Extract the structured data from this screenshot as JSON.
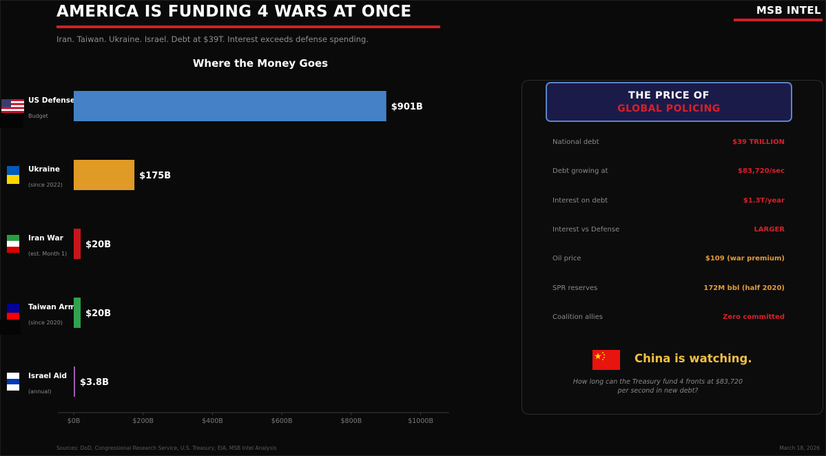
{
  "header": {
    "title": "AMERICA IS FUNDING 4 WARS AT ONCE",
    "subtitle": "Iran. Taiwan. Ukraine. Israel. Debt at $39T. Interest exceeds defense spending.",
    "brand": "MSB INTEL"
  },
  "chart_data": {
    "type": "bar",
    "orientation": "horizontal",
    "title": "Where the Money Goes",
    "xlabel": "",
    "ylabel": "",
    "xlim": [
      0,
      1080
    ],
    "grid": false,
    "unit": "billion USD",
    "categories": [
      {
        "name": "US Defense",
        "sub": "Budget",
        "value": 901,
        "label": "$901B",
        "color": "#4481c7",
        "flag": "us-flag-icon"
      },
      {
        "name": "Ukraine",
        "sub": "(since 2022)",
        "value": 175,
        "label": "$175B",
        "color": "#e09a26",
        "flag": "ukraine-flag-icon"
      },
      {
        "name": "Iran War",
        "sub": "(est. Month 1)",
        "value": 20,
        "label": "$20B",
        "color": "#c8151b",
        "flag": "iran-flag-icon"
      },
      {
        "name": "Taiwan Arm",
        "sub": "(since 2020)",
        "value": 20,
        "label": "$20B",
        "color": "#2fa34f",
        "flag": "taiwan-flag-icon"
      },
      {
        "name": "Israel Aid",
        "sub": "(annual)",
        "value": 3.8,
        "label": "$3.8B",
        "color": "#a05bb5",
        "flag": "israel-flag-icon"
      }
    ],
    "ticks": [
      {
        "value": 0,
        "label": "$0B"
      },
      {
        "value": 200,
        "label": "$200B"
      },
      {
        "value": 400,
        "label": "$400B"
      },
      {
        "value": 600,
        "label": "$600B"
      },
      {
        "value": 800,
        "label": "$800B"
      },
      {
        "value": 1000,
        "label": "$1000B"
      }
    ]
  },
  "panel": {
    "title_line1": "THE PRICE OF",
    "title_line2": "GLOBAL POLICING",
    "stats": [
      {
        "label": "National debt",
        "value": "$39 TRILLION",
        "color": "#d8202a"
      },
      {
        "label": "Debt growing at",
        "value": "$83,720/sec",
        "color": "#d8202a"
      },
      {
        "label": "Interest on debt",
        "value": "$1.3T/year",
        "color": "#d8202a"
      },
      {
        "label": "Interest vs Defense",
        "value": "LARGER",
        "color": "#d8202a"
      },
      {
        "label": "Oil price",
        "value": "$109 (war premium)",
        "color": "#e49a3a"
      },
      {
        "label": "SPR reserves",
        "value": "172M bbl (half 2020)",
        "color": "#e49a3a"
      },
      {
        "label": "Coalition allies",
        "value": "Zero committed",
        "color": "#d8202a"
      }
    ],
    "china_text": "China is watching.",
    "question": "How long can the Treasury fund 4 fronts at $83,720 per second in new debt?"
  },
  "footer": {
    "sources": "Sources: DoD, Congressional Research Service, U.S. Treasury, EIA, MSB Intel Analysis",
    "date": "March 18, 2026"
  }
}
